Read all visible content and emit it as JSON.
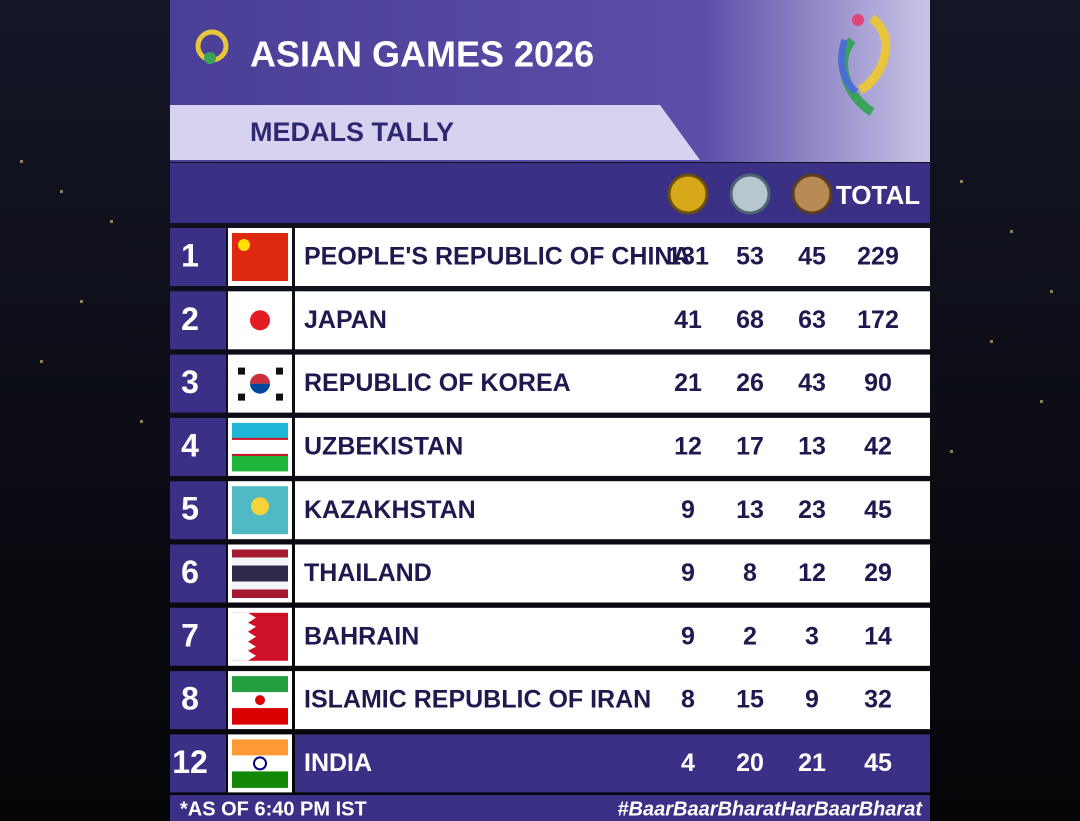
{
  "header": {
    "title": "ASIAN GAMES 2026",
    "subtitle": "MEDALS TALLY"
  },
  "table": {
    "columns": [
      "TOTAL"
    ],
    "rows": [
      [
        1,
        "PEOPLE'S REPUBLIC OF CHINA",
        131,
        53,
        45,
        229
      ],
      [
        2,
        "JAPAN",
        41,
        68,
        63,
        172
      ],
      [
        3,
        "REPUBLIC OF KOREA",
        21,
        26,
        43,
        90
      ],
      [
        4,
        "UZBEKISTAN",
        12,
        17,
        13,
        42
      ],
      [
        5,
        "KAZAKHSTAN",
        9,
        13,
        23,
        45
      ],
      [
        6,
        "THAILAND",
        9,
        8,
        12,
        29
      ],
      [
        7,
        "BAHRAIN",
        9,
        2,
        3,
        14
      ],
      [
        8,
        "ISLAMIC REPUBLIC OF IRAN",
        8,
        15,
        9,
        32
      ],
      [
        12,
        "INDIA",
        4,
        20,
        21,
        45
      ]
    ]
  },
  "footer": {
    "note": "*AS OF 6:40 PM IST",
    "hashtag": "#BaarBaarBharatHarBaarBharat"
  }
}
